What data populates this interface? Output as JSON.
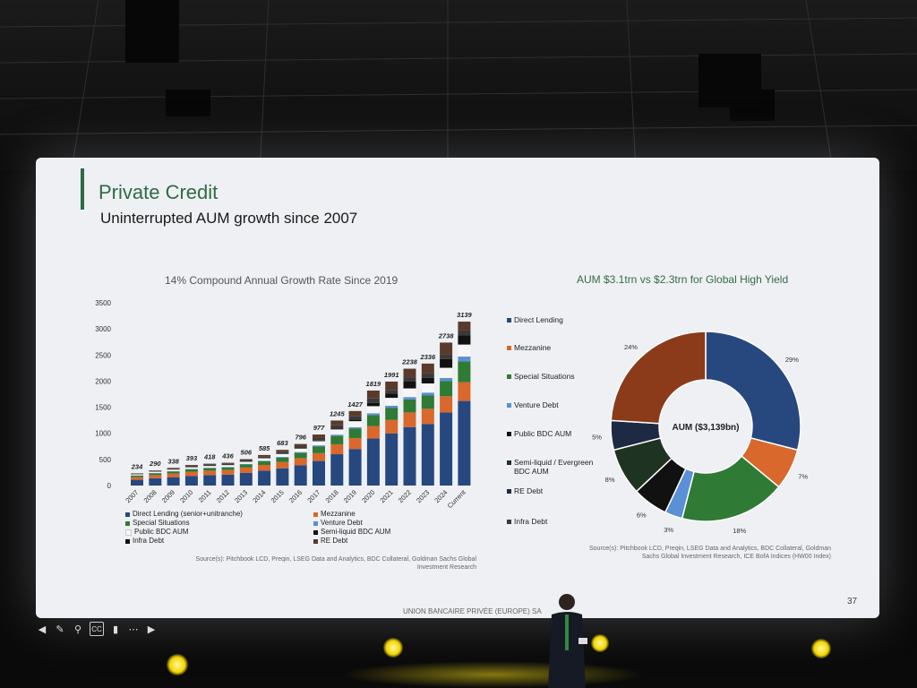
{
  "slide": {
    "title": "Private Credit",
    "subtitle": "Uninterrupted AUM growth since 2007",
    "left_chart_title": "14% Compound Annual Growth Rate Since 2019",
    "right_chart_title": "AUM $3.1trn vs $2.3trn for Global High Yield",
    "source_left": "Source(s): Pitchbook LCD, Preqin, LSEG Data and Analytics, BDC Collateral, Goldman Sachs Global Investment Research",
    "source_right": "Source(s): Pitchbook LCD, Preqin, LSEG Data and Analytics, BDC Collateral, Goldman Sachs Global Investment Research, ICE BofA Indices (HW00 Index)",
    "footer": "UNION BANCAIRE PRIVÉE (EUROPE) SA",
    "page_number": "37",
    "colors": {
      "accent": "#2f6b45",
      "screen_bg": "#eef0f3"
    }
  },
  "chart_data": [
    {
      "type": "bar",
      "stacked": true,
      "title": "14% Compound Annual Growth Rate Since 2019",
      "categories": [
        "2007",
        "2008",
        "2009",
        "2010",
        "2011",
        "2012",
        "2013",
        "2014",
        "2015",
        "2016",
        "2017",
        "2018",
        "2019",
        "2020",
        "2021",
        "2022",
        "2023",
        "2024",
        "Current"
      ],
      "totals": [
        234,
        290,
        338,
        393,
        418,
        436,
        506,
        585,
        683,
        796,
        977,
        1245,
        1427,
        1819,
        1991,
        2238,
        2336,
        2738,
        3139
      ],
      "total_labels": [
        "234",
        "290",
        "338",
        "393",
        "418",
        "436",
        "506",
        "585",
        "683",
        "796",
        "977",
        "1245",
        "1427",
        "1819",
        "1991",
        "2238",
        "2336",
        "2738",
        "3139"
      ],
      "ylim": [
        0,
        3500
      ],
      "yticks": [
        "0",
        "500",
        "1000",
        "1500",
        "2000",
        "2500",
        "3000",
        "3500"
      ],
      "series": [
        {
          "name": "Direct Lending (senior+unitranche)",
          "color": "#27477f",
          "values": [
            110,
            140,
            160,
            185,
            200,
            210,
            245,
            285,
            330,
            390,
            470,
            600,
            700,
            900,
            1000,
            1120,
            1180,
            1400,
            1620
          ]
        },
        {
          "name": "Mezzanine",
          "color": "#d9682c",
          "values": [
            50,
            60,
            70,
            80,
            85,
            88,
            100,
            110,
            120,
            135,
            150,
            190,
            210,
            240,
            260,
            280,
            290,
            310,
            360
          ]
        },
        {
          "name": "Special Situations",
          "color": "#2f7a34",
          "values": [
            30,
            35,
            40,
            45,
            48,
            50,
            60,
            70,
            85,
            100,
            130,
            160,
            180,
            210,
            230,
            250,
            260,
            290,
            400
          ]
        },
        {
          "name": "Venture Debt",
          "color": "#5b8fd6",
          "values": [
            5,
            6,
            7,
            8,
            8,
            9,
            10,
            12,
            14,
            16,
            20,
            25,
            28,
            35,
            40,
            45,
            50,
            60,
            90
          ]
        },
        {
          "name": "Public BDC AUM",
          "color": "#f6f6f6",
          "values": [
            20,
            25,
            28,
            32,
            34,
            35,
            40,
            45,
            55,
            65,
            80,
            100,
            115,
            135,
            150,
            165,
            175,
            195,
            230
          ]
        },
        {
          "name": "Semi-liquid BDC AUM",
          "color": "#111111",
          "values": [
            0,
            0,
            0,
            0,
            0,
            0,
            0,
            0,
            0,
            0,
            10,
            20,
            30,
            60,
            80,
            130,
            110,
            170,
            180
          ]
        },
        {
          "name": "Infra Debt",
          "color": "#3a3a3a",
          "values": [
            10,
            12,
            15,
            20,
            22,
            22,
            26,
            30,
            35,
            40,
            50,
            60,
            64,
            89,
            71,
            78,
            81,
            90,
            89
          ]
        },
        {
          "name": "RE Debt",
          "color": "#5a3a2a",
          "values": [
            9,
            12,
            18,
            23,
            21,
            22,
            25,
            33,
            44,
            50,
            67,
            90,
            100,
            150,
            160,
            170,
            190,
            223,
            170
          ]
        }
      ]
    },
    {
      "type": "pie",
      "donut": true,
      "title": "AUM $3.1trn vs $2.3trn for Global High Yield",
      "center_label": "AUM ($3,139bn)",
      "slices": [
        {
          "name": "Direct Lending",
          "value": 29,
          "label": "29%",
          "color": "#27477f"
        },
        {
          "name": "Mezzanine",
          "value": 7,
          "label": "7%",
          "color": "#d9682c"
        },
        {
          "name": "Special Situations",
          "value": 18,
          "label": "18%",
          "color": "#2f7a34"
        },
        {
          "name": "Venture Debt",
          "value": 3,
          "label": "3%",
          "color": "#5b8fd6"
        },
        {
          "name": "Public BDC AUM",
          "value": 6,
          "label": "6%",
          "color": "#111111"
        },
        {
          "name": "Semi-liquid / Evergreen BDC AUM",
          "value": 8,
          "label": "8%",
          "color": "#1f3323"
        },
        {
          "name": "RE Debt",
          "value": 5,
          "label": "5%",
          "color": "#1e2a44"
        },
        {
          "name": "Infra Debt",
          "value": 24,
          "label": "24%",
          "color": "#8b3b1a"
        }
      ]
    }
  ],
  "donut_legend": [
    {
      "label": "Direct Lending",
      "color": "#27477f"
    },
    {
      "label": "Mezzanine",
      "color": "#d9682c"
    },
    {
      "label": "Special Situations",
      "color": "#2f7a34"
    },
    {
      "label": "Venture Debt",
      "color": "#5b8fd6"
    },
    {
      "label": "Public BDC AUM",
      "color": "#111111"
    },
    {
      "label": "Semi-liquid / Evergreen BDC AUM",
      "color": "#1f3323"
    },
    {
      "label": "RE Debt",
      "color": "#1e2a44"
    },
    {
      "label": "Infra Debt",
      "color": "#3a3a3a"
    }
  ],
  "bar_legend": [
    {
      "label": "Direct Lending (senior+unitranche)",
      "color": "#27477f"
    },
    {
      "label": "Mezzanine",
      "color": "#d9682c"
    },
    {
      "label": "Special Situations",
      "color": "#2f7a34"
    },
    {
      "label": "Venture Debt",
      "color": "#5b8fd6"
    },
    {
      "label": "Public BDC AUM",
      "color": "#f6f6f6"
    },
    {
      "label": "Semi-liquid BDC AUM",
      "color": "#111111"
    },
    {
      "label": "Infra Debt",
      "color": "#111111"
    },
    {
      "label": "RE Debt",
      "color": "#5a3a2a"
    }
  ],
  "toolbar_icons": [
    "back-icon",
    "pen-icon",
    "zoom-icon",
    "captions-icon",
    "camera-icon",
    "more-icon",
    "forward-icon"
  ],
  "toolbar_glyphs": [
    "◀",
    "✎",
    "⚲",
    "CC",
    "▮",
    "⋯",
    "▶"
  ]
}
